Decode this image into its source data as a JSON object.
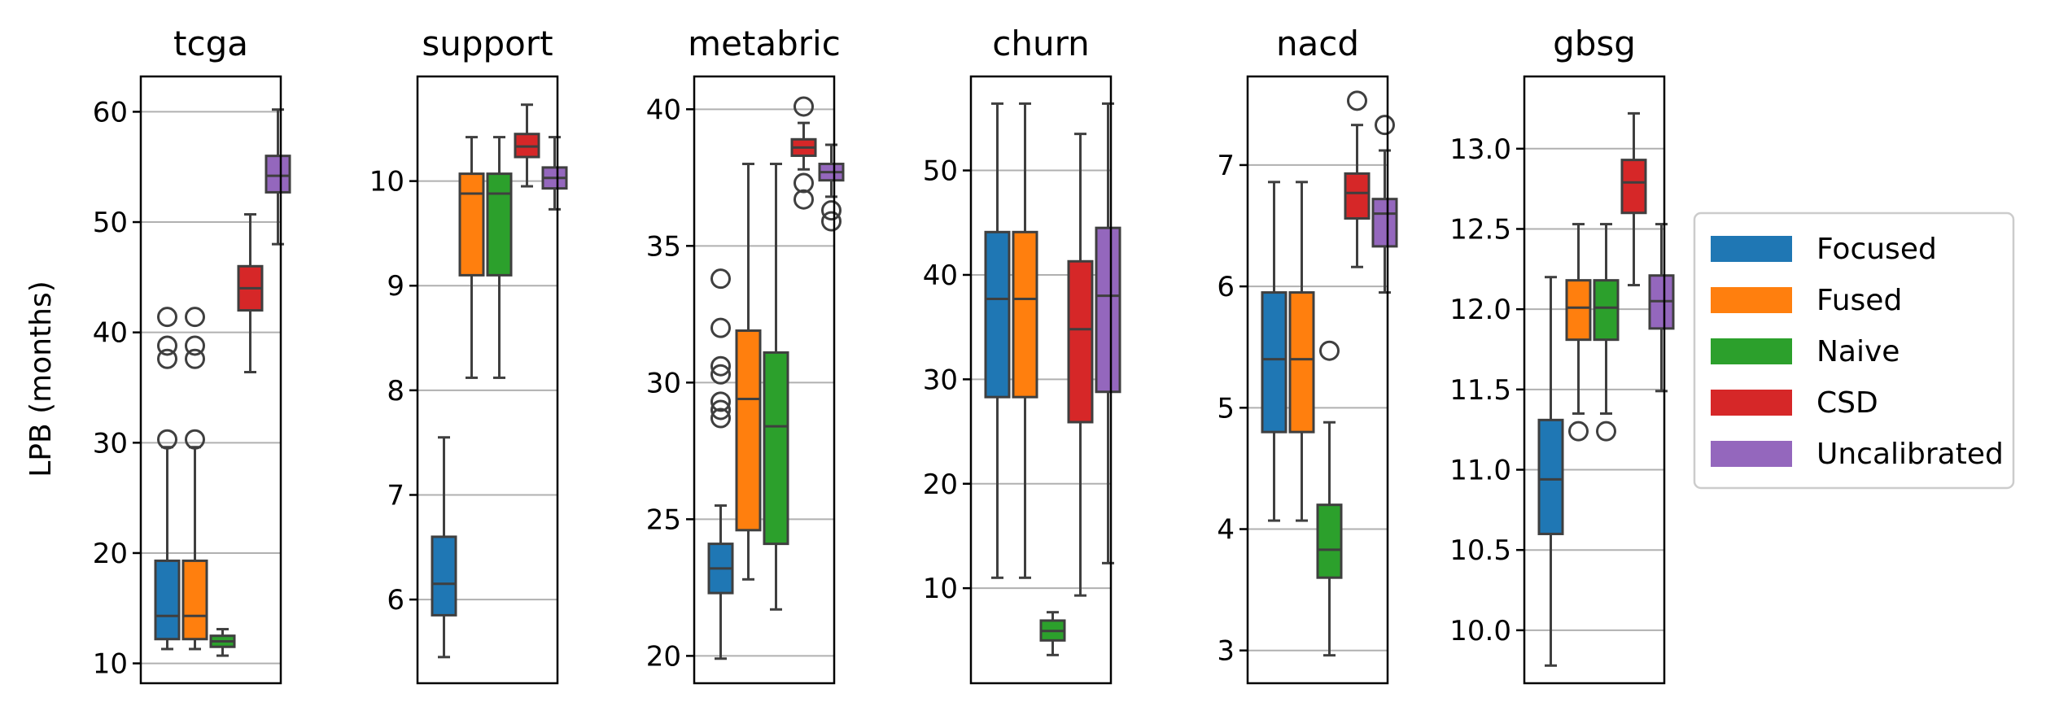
{
  "chart_data": {
    "type": "box",
    "ylabel": "LPB (months)",
    "legend": {
      "placement": "right",
      "entries": [
        {
          "name": "Focused",
          "color": "#1f77b4"
        },
        {
          "name": "Fused",
          "color": "#ff7f0e"
        },
        {
          "name": "Naive",
          "color": "#2ca02c"
        },
        {
          "name": "CSD",
          "color": "#d62728"
        },
        {
          "name": "Uncalibrated",
          "color": "#9467bd"
        }
      ]
    },
    "grid": "y",
    "panels": [
      {
        "title": "tcga",
        "ylim": [
          8.2,
          63.2
        ],
        "yticks": [
          10,
          20,
          30,
          40,
          50,
          60
        ],
        "yticklabels": [
          "10",
          "20",
          "30",
          "40",
          "50",
          "60"
        ],
        "boxes": [
          {
            "series": "Focused",
            "whislo": 11.3,
            "q1": 12.2,
            "med": 14.3,
            "q3": 19.3,
            "whishi": 29.6,
            "fliers": [
              30.3,
              37.6,
              38.8,
              41.4
            ]
          },
          {
            "series": "Fused",
            "whislo": 11.3,
            "q1": 12.2,
            "med": 14.3,
            "q3": 19.3,
            "whishi": 29.6,
            "fliers": [
              30.3,
              37.6,
              38.8,
              41.4
            ]
          },
          {
            "series": "Naive",
            "whislo": 10.7,
            "q1": 11.5,
            "med": 12.0,
            "q3": 12.5,
            "whishi": 13.1,
            "fliers": []
          },
          {
            "series": "CSD",
            "whislo": 36.4,
            "q1": 42.0,
            "med": 44.0,
            "q3": 46.0,
            "whishi": 50.7,
            "fliers": []
          },
          {
            "series": "Uncalibrated",
            "whislo": 48.0,
            "q1": 52.7,
            "med": 54.2,
            "q3": 56.0,
            "whishi": 60.2,
            "fliers": []
          }
        ]
      },
      {
        "title": "support",
        "ylim": [
          5.2,
          11.0
        ],
        "yticks": [
          6,
          7,
          8,
          9,
          10
        ],
        "yticklabels": [
          "6",
          "7",
          "8",
          "9",
          "10"
        ],
        "boxes": [
          {
            "series": "Focused",
            "whislo": 5.45,
            "q1": 5.85,
            "med": 6.15,
            "q3": 6.6,
            "whishi": 7.55,
            "fliers": []
          },
          {
            "series": "Fused",
            "whislo": 8.12,
            "q1": 9.1,
            "med": 9.88,
            "q3": 10.07,
            "whishi": 10.42,
            "fliers": []
          },
          {
            "series": "Naive",
            "whislo": 8.12,
            "q1": 9.1,
            "med": 9.88,
            "q3": 10.07,
            "whishi": 10.42,
            "fliers": []
          },
          {
            "series": "CSD",
            "whislo": 9.95,
            "q1": 10.23,
            "med": 10.33,
            "q3": 10.45,
            "whishi": 10.73,
            "fliers": []
          },
          {
            "series": "Uncalibrated",
            "whislo": 9.73,
            "q1": 9.93,
            "med": 10.03,
            "q3": 10.13,
            "whishi": 10.42,
            "fliers": []
          }
        ]
      },
      {
        "title": "metabric",
        "ylim": [
          19.0,
          41.2
        ],
        "yticks": [
          20,
          25,
          30,
          35,
          40
        ],
        "yticklabels": [
          "20",
          "25",
          "30",
          "35",
          "40"
        ],
        "boxes": [
          {
            "series": "Focused",
            "whislo": 19.9,
            "q1": 22.3,
            "med": 23.2,
            "q3": 24.1,
            "whishi": 25.5,
            "fliers": [
              28.7,
              29.0,
              29.3,
              30.3,
              30.6,
              32.0,
              33.8
            ]
          },
          {
            "series": "Fused",
            "whislo": 22.8,
            "q1": 24.6,
            "med": 29.4,
            "q3": 31.9,
            "whishi": 38.0,
            "fliers": []
          },
          {
            "series": "Naive",
            "whislo": 21.7,
            "q1": 24.1,
            "med": 28.4,
            "q3": 31.1,
            "whishi": 38.0,
            "fliers": []
          },
          {
            "series": "CSD",
            "whislo": 37.8,
            "q1": 38.3,
            "med": 38.6,
            "q3": 38.9,
            "whishi": 39.5,
            "fliers": [
              36.7,
              37.3,
              40.1
            ]
          },
          {
            "series": "Uncalibrated",
            "whislo": 36.8,
            "q1": 37.4,
            "med": 37.7,
            "q3": 38.0,
            "whishi": 38.7,
            "fliers": [
              35.9,
              36.3
            ]
          }
        ]
      },
      {
        "title": "churn",
        "ylim": [
          0.9,
          59.0
        ],
        "yticks": [
          10,
          20,
          30,
          40,
          50
        ],
        "yticklabels": [
          "10",
          "20",
          "30",
          "40",
          "50"
        ],
        "boxes": [
          {
            "series": "Focused",
            "whislo": 11.0,
            "q1": 28.3,
            "med": 37.7,
            "q3": 44.1,
            "whishi": 56.4,
            "fliers": []
          },
          {
            "series": "Fused",
            "whislo": 11.0,
            "q1": 28.3,
            "med": 37.7,
            "q3": 44.1,
            "whishi": 56.4,
            "fliers": []
          },
          {
            "series": "Naive",
            "whislo": 3.6,
            "q1": 5.0,
            "med": 5.9,
            "q3": 6.9,
            "whishi": 7.7,
            "fliers": []
          },
          {
            "series": "CSD",
            "whislo": 9.3,
            "q1": 25.9,
            "med": 34.8,
            "q3": 41.3,
            "whishi": 53.5,
            "fliers": []
          },
          {
            "series": "Uncalibrated",
            "whislo": 12.4,
            "q1": 28.8,
            "med": 38.0,
            "q3": 44.5,
            "whishi": 56.4,
            "fliers": []
          }
        ]
      },
      {
        "title": "nacd",
        "ylim": [
          2.73,
          7.73
        ],
        "yticks": [
          3,
          4,
          5,
          6,
          7
        ],
        "yticklabels": [
          "3",
          "4",
          "5",
          "6",
          "7"
        ],
        "boxes": [
          {
            "series": "Focused",
            "whislo": 4.07,
            "q1": 4.8,
            "med": 5.4,
            "q3": 5.95,
            "whishi": 6.86,
            "fliers": []
          },
          {
            "series": "Fused",
            "whislo": 4.07,
            "q1": 4.8,
            "med": 5.4,
            "q3": 5.95,
            "whishi": 6.86,
            "fliers": []
          },
          {
            "series": "Naive",
            "whislo": 2.96,
            "q1": 3.6,
            "med": 3.83,
            "q3": 4.2,
            "whishi": 4.88,
            "fliers": [
              5.47
            ]
          },
          {
            "series": "CSD",
            "whislo": 6.16,
            "q1": 6.56,
            "med": 6.77,
            "q3": 6.93,
            "whishi": 7.33,
            "fliers": [
              7.53
            ]
          },
          {
            "series": "Uncalibrated",
            "whislo": 5.95,
            "q1": 6.33,
            "med": 6.6,
            "q3": 6.72,
            "whishi": 7.12,
            "fliers": [
              7.33
            ]
          }
        ]
      },
      {
        "title": "gbsg",
        "ylim": [
          9.67,
          13.45
        ],
        "yticks": [
          10.0,
          10.5,
          11.0,
          11.5,
          12.0,
          12.5,
          13.0
        ],
        "yticklabels": [
          "10.0",
          "10.5",
          "11.0",
          "11.5",
          "12.0",
          "12.5",
          "13.0"
        ],
        "boxes": [
          {
            "series": "Focused",
            "whislo": 9.78,
            "q1": 10.6,
            "med": 10.94,
            "q3": 11.31,
            "whishi": 12.2,
            "fliers": []
          },
          {
            "series": "Fused",
            "whislo": 11.35,
            "q1": 11.81,
            "med": 12.01,
            "q3": 12.18,
            "whishi": 12.53,
            "fliers": [
              11.24
            ]
          },
          {
            "series": "Naive",
            "whislo": 11.35,
            "q1": 11.81,
            "med": 12.01,
            "q3": 12.18,
            "whishi": 12.53,
            "fliers": [
              11.24
            ]
          },
          {
            "series": "CSD",
            "whislo": 12.15,
            "q1": 12.6,
            "med": 12.79,
            "q3": 12.93,
            "whishi": 13.22,
            "fliers": []
          },
          {
            "series": "Uncalibrated",
            "whislo": 11.49,
            "q1": 11.88,
            "med": 12.05,
            "q3": 12.21,
            "whishi": 12.53,
            "fliers": []
          }
        ]
      }
    ]
  }
}
